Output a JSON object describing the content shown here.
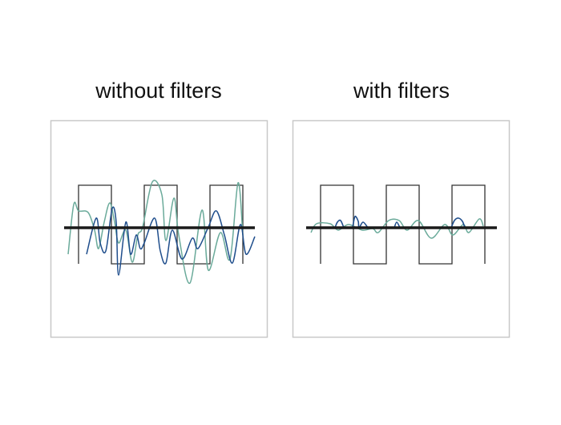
{
  "panels": [
    {
      "title": "without filters"
    },
    {
      "title": "with filters"
    }
  ],
  "colors": {
    "square_wave": "#333333",
    "baseline": "#1a1a1a",
    "trace_teal": "#6aaa9a",
    "trace_blue": "#1f4e8c",
    "panel_border": "#c8c8c8"
  }
}
